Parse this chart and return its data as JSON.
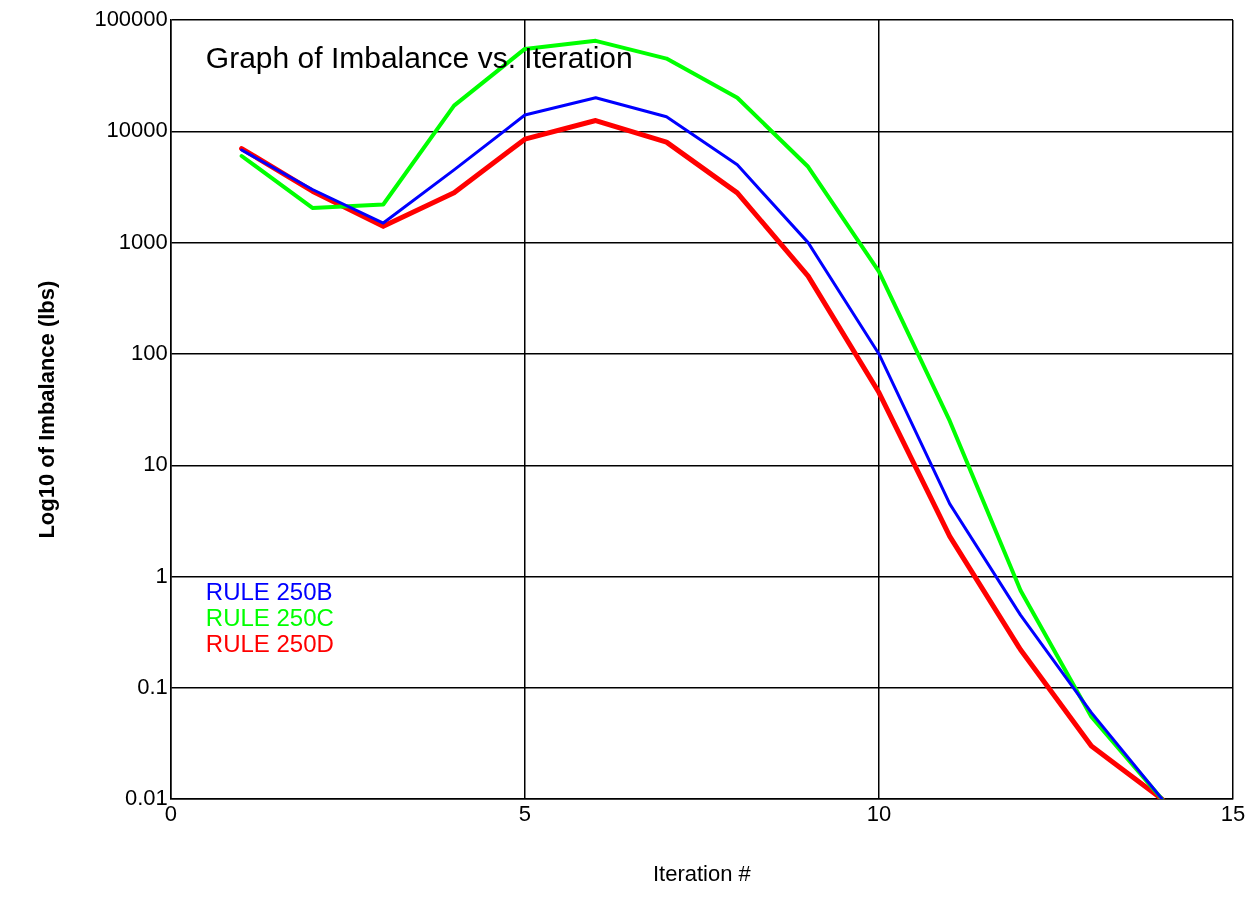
{
  "chart_data": {
    "type": "line",
    "title": "Graph of Imbalance vs. Iteration",
    "xlabel": "Iteration #",
    "ylabel": "Log10 of Imbalance (lbs)",
    "x": [
      1,
      2,
      3,
      4,
      5,
      6,
      7,
      8,
      9,
      10,
      11,
      12,
      13,
      14
    ],
    "series": [
      {
        "name": "RULE 250B",
        "color": "#0000ff",
        "values": [
          6800,
          3000,
          1500,
          4500,
          14000,
          20000,
          13500,
          5000,
          1000,
          100,
          4.5,
          0.45,
          0.06,
          0.01
        ]
      },
      {
        "name": "RULE 250C",
        "color": "#00ff00",
        "values": [
          6000,
          2050,
          2200,
          17000,
          55000,
          65000,
          45000,
          20000,
          4800,
          550,
          25,
          0.75,
          0.055,
          0.01
        ]
      },
      {
        "name": "RULE 250D",
        "color": "#ff0000",
        "values": [
          7000,
          2900,
          1400,
          2800,
          8500,
          12500,
          8000,
          2800,
          500,
          45,
          2.3,
          0.22,
          0.03,
          0.01
        ]
      }
    ],
    "xlim": [
      0,
      15
    ],
    "xticks": [
      0,
      5,
      10,
      15
    ],
    "ylim": [
      0.01,
      100000
    ],
    "yticks": [
      0.01,
      0.1,
      1,
      10,
      100,
      1000,
      10000,
      100000
    ],
    "log": "y",
    "grid": true,
    "legend": "bottom left",
    "marker": "none",
    "line_style": "solid"
  }
}
